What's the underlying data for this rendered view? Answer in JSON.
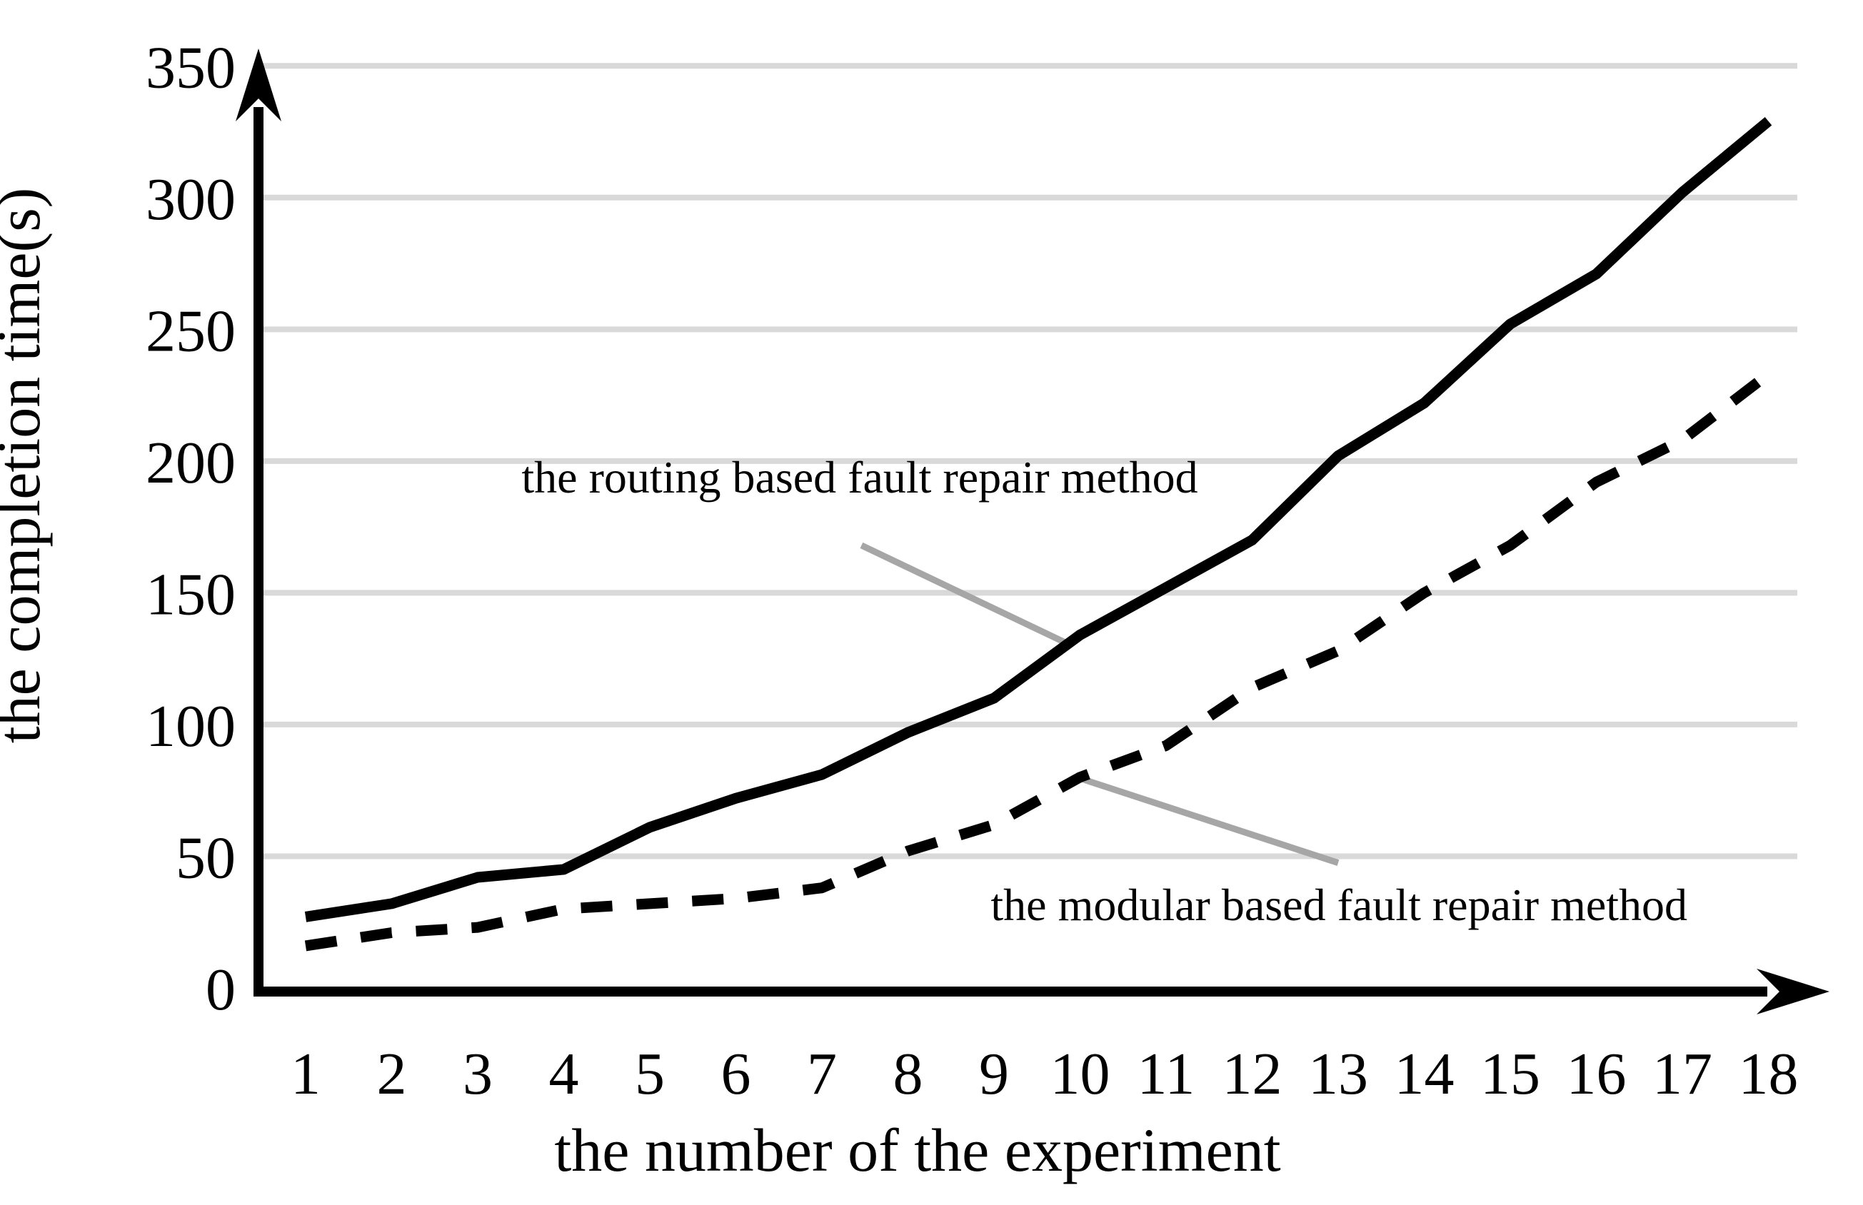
{
  "chart_data": {
    "type": "line",
    "title": "",
    "xlabel": "the number of the experiment",
    "ylabel": "the completion time(s)",
    "x": [
      1,
      2,
      3,
      4,
      5,
      6,
      7,
      8,
      9,
      10,
      11,
      12,
      13,
      14,
      15,
      16,
      17,
      18
    ],
    "xtick_labels": [
      "1",
      "2",
      "3",
      "4",
      "5",
      "6",
      "7",
      "8",
      "9",
      "10",
      "11",
      "12",
      "13",
      "14",
      "15",
      "16",
      "17",
      "18"
    ],
    "yticks": [
      0,
      50,
      100,
      150,
      200,
      250,
      300,
      350
    ],
    "ylim": [
      0,
      350
    ],
    "grid": "horizontal-only",
    "legend": "inline-callout-annotations",
    "series": [
      {
        "name": "the routing based fault repair method",
        "style": "solid",
        "values": [
          27,
          32,
          42,
          45,
          61,
          72,
          81,
          97,
          110,
          134,
          152,
          170,
          202,
          222,
          252,
          271,
          302,
          329
        ]
      },
      {
        "name": "the modular based fault repair method",
        "style": "dashed",
        "values": [
          16,
          21,
          23,
          30,
          32,
          34,
          38,
          52,
          62,
          80,
          92,
          114,
          128,
          150,
          168,
          192,
          208,
          233
        ]
      }
    ],
    "annotations": [
      {
        "text": "the routing based fault repair method",
        "points_to_series": "the routing based fault repair method",
        "label_at": {
          "x": 7.44,
          "y": 188
        },
        "line_from": {
          "x": 7.46,
          "y": 168
        },
        "line_to": {
          "x": 9.9,
          "y": 130
        }
      },
      {
        "text": "the modular based fault repair method",
        "points_to_series": "the modular based fault repair method",
        "label_at": {
          "x": 13.01,
          "y": 25.7
        },
        "line_from": {
          "x": 9.96,
          "y": 80
        },
        "line_to": {
          "x": 13.0,
          "y": 47.5
        }
      }
    ]
  },
  "colors": {
    "background": "#ffffff",
    "series_line": "#000000",
    "gridline": "#d9d9d9",
    "leader_line": "#a6a6a6",
    "axis": "#000000",
    "text": "#000000"
  }
}
